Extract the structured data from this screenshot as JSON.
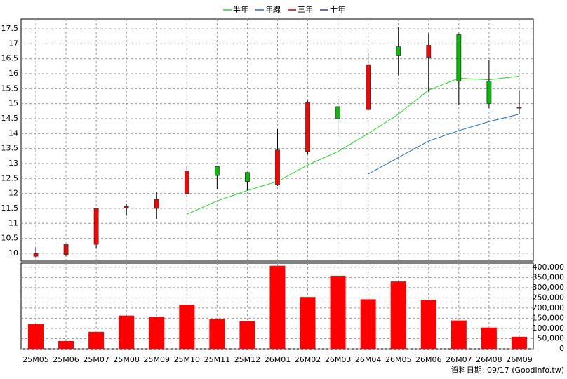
{
  "chart_data": {
    "type": "candlestick",
    "categories": [
      "25M05",
      "25M06",
      "25M07",
      "25M08",
      "25M09",
      "25M10",
      "25M11",
      "25M12",
      "26M01",
      "26M02",
      "26M03",
      "26M04",
      "26M05",
      "26M06",
      "26M07",
      "26M08",
      "26M09"
    ],
    "open": [
      9.9,
      9.95,
      10.3,
      11.52,
      11.5,
      12.0,
      12.9,
      12.7,
      12.3,
      13.4,
      14.9,
      14.8,
      16.9,
      16.55,
      17.3,
      15.75,
      14.85
    ],
    "high": [
      10.2,
      10.3,
      11.5,
      11.65,
      12.05,
      12.9,
      12.9,
      12.7,
      14.15,
      15.1,
      15.2,
      16.7,
      17.55,
      17.35,
      17.35,
      16.45,
      15.45
    ],
    "low": [
      9.85,
      9.9,
      10.15,
      11.25,
      11.15,
      11.9,
      12.15,
      12.1,
      12.25,
      13.3,
      13.9,
      14.75,
      15.95,
      15.4,
      14.95,
      14.85,
      14.65
    ],
    "close": [
      10.0,
      10.3,
      11.5,
      11.57,
      11.8,
      12.75,
      12.6,
      12.4,
      13.45,
      15.05,
      14.5,
      16.3,
      16.6,
      16.95,
      15.75,
      15.0,
      14.88
    ],
    "up_color": "#ff0000",
    "down_color": "#00c000",
    "series": [
      {
        "name": "半年",
        "color": "#22dd22",
        "values": [
          null,
          null,
          null,
          null,
          null,
          11.3,
          11.75,
          12.1,
          12.4,
          12.95,
          13.4,
          14.0,
          14.65,
          15.45,
          15.85,
          15.8,
          15.92
        ]
      },
      {
        "name": "年線",
        "color": "#1f6fd0",
        "values": [
          null,
          null,
          null,
          null,
          null,
          null,
          null,
          null,
          null,
          null,
          null,
          12.65,
          13.2,
          13.75,
          14.1,
          14.4,
          14.65
        ]
      },
      {
        "name": "三年",
        "color": "#d00000",
        "values": [
          null,
          null,
          null,
          null,
          null,
          null,
          null,
          null,
          null,
          null,
          null,
          null,
          null,
          null,
          null,
          null,
          null
        ]
      },
      {
        "name": "十年",
        "color": "#4b2fc0",
        "values": [
          null,
          null,
          null,
          null,
          null,
          null,
          null,
          null,
          null,
          null,
          null,
          null,
          null,
          null,
          null,
          null,
          null
        ]
      }
    ],
    "ylim": [
      9.74,
      17.83
    ],
    "yticks": [
      10,
      10.5,
      11,
      11.5,
      12,
      12.5,
      13,
      13.5,
      14,
      14.5,
      15,
      15.5,
      16,
      16.5,
      17,
      17.5
    ],
    "volume": [
      122000,
      38000,
      83000,
      163000,
      157000,
      216000,
      146000,
      136000,
      407000,
      254000,
      358000,
      243000,
      330000,
      240000,
      139000,
      104000,
      59000
    ],
    "volume_color": "#ff0000",
    "y2lim": [
      0,
      420000
    ],
    "y2ticks": [
      0,
      {
        "value": 50000,
        "label": "50,000"
      },
      {
        "value": 100000,
        "label": "100,000"
      },
      {
        "value": 150000,
        "label": "150,000"
      },
      {
        "value": 200000,
        "label": "200,000"
      },
      {
        "value": 250000,
        "label": "250,000"
      },
      {
        "value": 300000,
        "label": "300,000"
      },
      {
        "value": 350000,
        "label": "350,000"
      },
      {
        "value": 400000,
        "label": "400,000"
      }
    ],
    "grid": true,
    "footer": "資料日期: 09/17  (Goodinfo.tw)"
  }
}
